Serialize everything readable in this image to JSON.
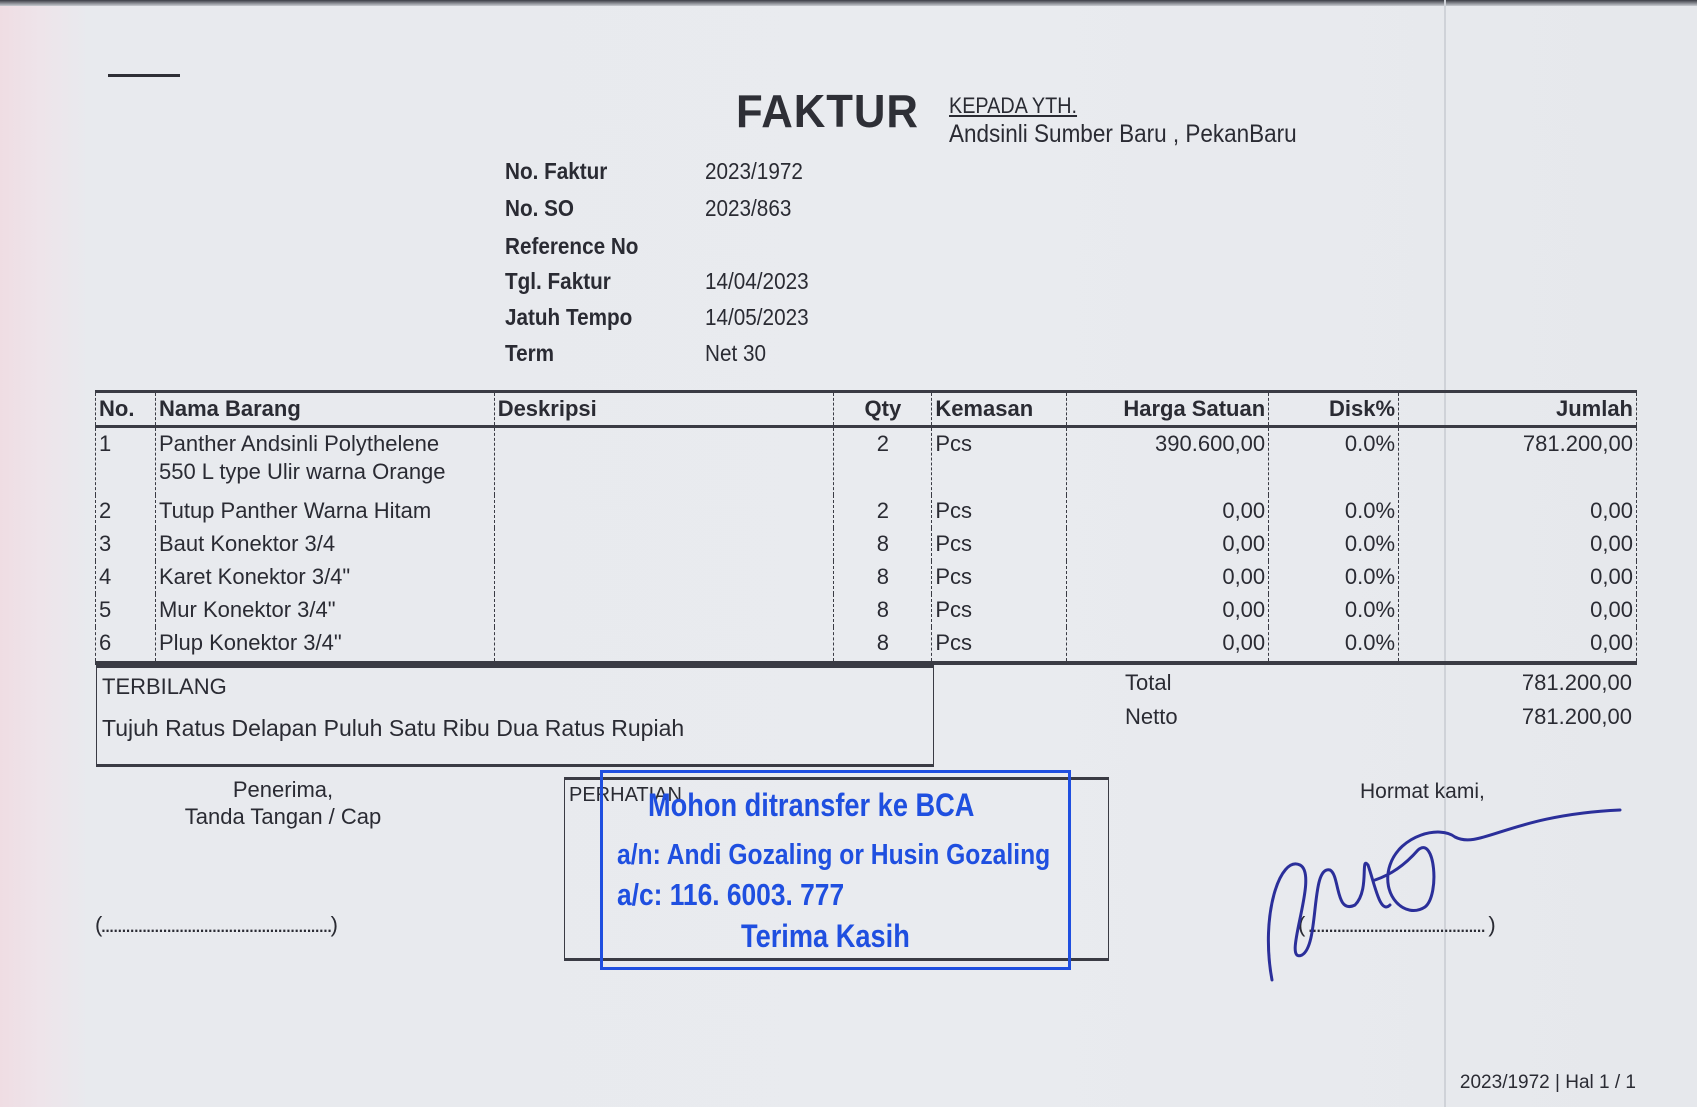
{
  "header": {
    "title": "FAKTUR",
    "recipient_label": "KEPADA YTH.",
    "recipient": "Andsinli Sumber Baru , PekanBaru"
  },
  "info": [
    {
      "label": "No. Faktur",
      "value": "2023/1972"
    },
    {
      "label": "No. SO",
      "value": "2023/863"
    },
    {
      "label": "Reference No",
      "value": ""
    },
    {
      "label": "Tgl. Faktur",
      "value": "14/04/2023"
    },
    {
      "label": "Jatuh Tempo",
      "value": "14/05/2023"
    },
    {
      "label": "Term",
      "value": "Net 30"
    }
  ],
  "table": {
    "headers": [
      "No.",
      "Nama Barang",
      "Deskripsi",
      "Qty",
      "Kemasan",
      "Harga Satuan",
      "Disk%",
      "Jumlah"
    ],
    "rows": [
      {
        "no": "1",
        "nama": "Panther Andsinli Polythelene",
        "nama2": "550 L type Ulir warna Orange",
        "deskripsi": "",
        "qty": "2",
        "kemasan": "Pcs",
        "harga": "390.600,00",
        "disk": "0.0%",
        "jumlah": "781.200,00"
      },
      {
        "no": "2",
        "nama": "Tutup Panther Warna Hitam",
        "deskripsi": "",
        "qty": "2",
        "kemasan": "Pcs",
        "harga": "0,00",
        "disk": "0.0%",
        "jumlah": "0,00"
      },
      {
        "no": "3",
        "nama": "Baut Konektor 3/4",
        "deskripsi": "",
        "qty": "8",
        "kemasan": "Pcs",
        "harga": "0,00",
        "disk": "0.0%",
        "jumlah": "0,00"
      },
      {
        "no": "4",
        "nama": "Karet Konektor 3/4\"",
        "deskripsi": "",
        "qty": "8",
        "kemasan": "Pcs",
        "harga": "0,00",
        "disk": "0.0%",
        "jumlah": "0,00"
      },
      {
        "no": "5",
        "nama": "Mur Konektor 3/4\"",
        "deskripsi": "",
        "qty": "8",
        "kemasan": "Pcs",
        "harga": "0,00",
        "disk": "0.0%",
        "jumlah": "0,00"
      },
      {
        "no": "6",
        "nama": "Plup Konektor 3/4\"",
        "deskripsi": "",
        "qty": "8",
        "kemasan": "Pcs",
        "harga": "0,00",
        "disk": "0.0%",
        "jumlah": "0,00"
      }
    ]
  },
  "terbilang": {
    "label": "TERBILANG",
    "text": "Tujuh Ratus Delapan Puluh Satu Ribu Dua Ratus Rupiah"
  },
  "totals": {
    "total_label": "Total",
    "total": "781.200,00",
    "netto_label": "Netto",
    "netto": "781.200,00"
  },
  "receiver": {
    "line1": "Penerima,",
    "line2": "Tanda Tangan / Cap",
    "blank": "(........................................................)"
  },
  "perhatian": {
    "label": "PERHATIAN"
  },
  "stamp": {
    "line1": "Mohon ditransfer ke BCA",
    "line2": "a/n: Andi Gozaling or Husin Gozaling",
    "line3": "a/c: 116. 6003. 777",
    "line4": "Terima Kasih",
    "color": "#1f4fe0"
  },
  "sender": {
    "label": "Hormat kami,",
    "blank": "( ........................................... )"
  },
  "footer": {
    "page": "2023/1972 | Hal 1 / 1"
  }
}
